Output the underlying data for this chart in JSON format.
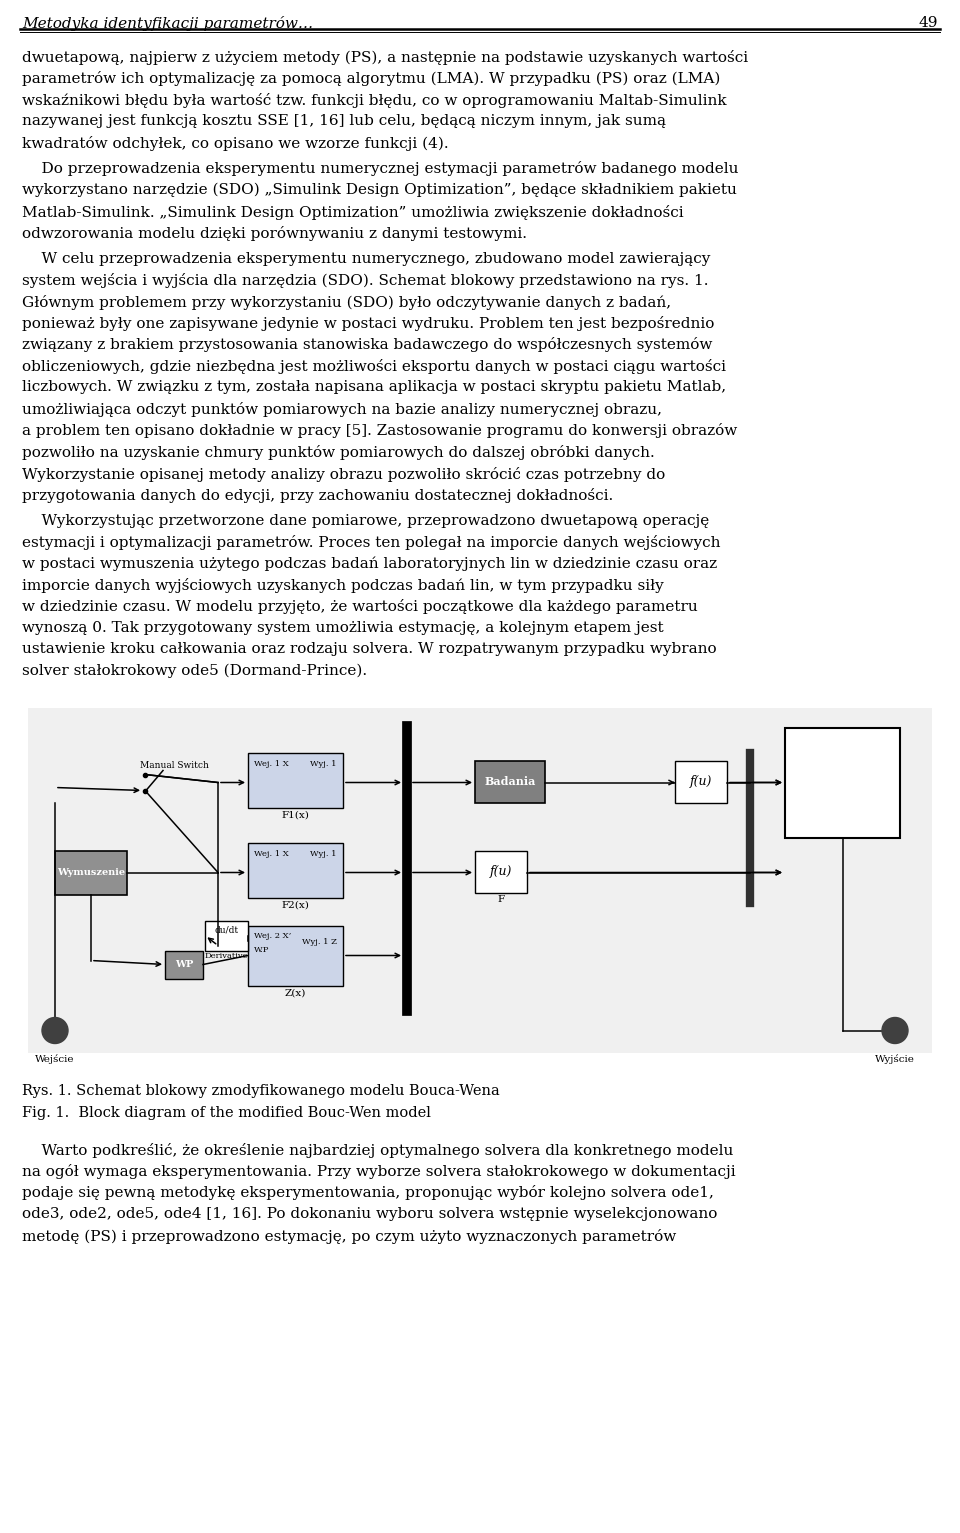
{
  "header_text": "Metodyka identyfikacji parametrów…",
  "header_page": "49",
  "para1_lines": [
    "dwuetapową, najpierw z użyciem metody (PS), a następnie na podstawie uzyskanych wartości",
    "parametrów ich optymalizację za pomocą algorytmu (LMA). W przypadku (PS) oraz (LMA)",
    "wskaźnikowi błędu była wartość tzw. funkcji błędu, co w oprogramowaniu Maltab-Simulink",
    "nazywanej jest funkcją kosztu SSE [1, 16] lub celu, będącą niczym innym, jak sumą",
    "kwadratów odchyłek, co opisano we wzorze funkcji (4)."
  ],
  "para2_lines": [
    "    Do przeprowadzenia eksperymentu numerycznej estymacji parametrów badanego modelu",
    "wykorzystano narzędzie (SDO) „Simulink Design Optimization”, będące składnikiem pakietu",
    "Matlab-Simulink. „Simulink Design Optimization” umożliwia zwiększenie dokładności",
    "odwzorowania modelu dzięki porównywaniu z danymi testowymi."
  ],
  "para3_lines": [
    "    W celu przeprowadzenia eksperymentu numerycznego, zbudowano model zawierający",
    "system wejścia i wyjścia dla narzędzia (SDO). Schemat blokowy przedstawiono na rys. 1.",
    "Głównym problemem przy wykorzystaniu (SDO) było odczytywanie danych z badań,",
    "ponieważ były one zapisywane jedynie w postaci wydruku. Problem ten jest bezpośrednio",
    "związany z brakiem przystosowania stanowiska badawczego do współczesnych systemów",
    "obliczeniowych, gdzie niezbędna jest możliwości eksportu danych w postaci ciągu wartości",
    "liczbowych. W związku z tym, została napisana aplikacja w postaci skryptu pakietu Matlab,",
    "umożliwiająca odczyt punktów pomiarowych na bazie analizy numerycznej obrazu,",
    "a problem ten opisano dokładnie w pracy [5]. Zastosowanie programu do konwersji obrazów",
    "pozwoliło na uzyskanie chmury punktów pomiarowych do dalszej obróbki danych.",
    "Wykorzystanie opisanej metody analizy obrazu pozwoliło skrócić czas potrzebny do",
    "przygotowania danych do edycji, przy zachowaniu dostatecznej dokładności."
  ],
  "para4_lines": [
    "    Wykorzystując przetworzone dane pomiarowe, przeprowadzono dwuetapową operację",
    "estymacji i optymalizacji parametrów. Proces ten polegał na imporcie danych wejściowych",
    "w postaci wymuszenia użytego podczas badań laboratoryjnych lin w dziedzinie czasu oraz",
    "imporcie danych wyjściowych uzyskanych podczas badań lin, w tym przypadku siły",
    "w dziedzinie czasu. W modelu przyjęto, że wartości początkowe dla każdego parametru",
    "wynoszą 0. Tak przygotowany system umożliwia estymację, a kolejnym etapem jest",
    "ustawienie kroku całkowania oraz rodzaju solvera. W rozpatrywanym przypadku wybrano",
    "solver stałokrokowy ode5 (Dormand-Prince)."
  ],
  "fig_caption_line1": "Rys. 1. Schemat blokowy zmodyfikowanego modelu Bouca-Wena",
  "fig_caption_line2": "Fig. 1.  Block diagram of the modified Bouc-Wen model",
  "para5_lines": [
    "    Warto podkreślić, że określenie najbardziej optymalnego solvera dla konkretnego modelu",
    "na ogół wymaga eksperymentowania. Przy wyborze solvera stałokrokowego w dokumentacji",
    "podaje się pewną metodykę eksperymentowania, proponując wybór kolejno solvera ode1,",
    "ode3, ode2, ode5, ode4 [1, 16]. Po dokonaniu wyboru solvera wstępnie wyselekcjonowano",
    "metodę (PS) i przeprowadzono estymację, po czym użyto wyznaczonych parametrów"
  ]
}
